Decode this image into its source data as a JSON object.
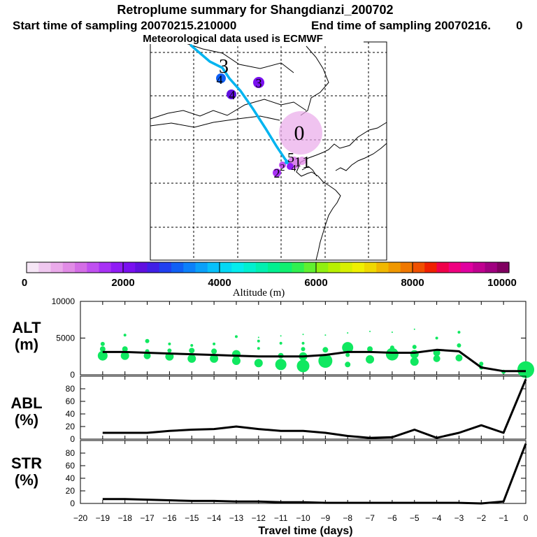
{
  "header": {
    "title": "Retroplume summary for Shangdianzi_200702",
    "start_label": "Start time of sampling 20070215.210000",
    "end_label": "End time of sampling 20070216.",
    "end_value": "0",
    "met_label": "Meteorological data used is ECMWF"
  },
  "colorbar": {
    "ticks": [
      "0",
      "2000",
      "4000",
      "6000",
      "8000",
      "10000"
    ],
    "label": "Altitude (m)",
    "range": [
      0,
      10000
    ],
    "colors": [
      "#f6e6f6",
      "#f0c8f0",
      "#eaaaea",
      "#e18ce6",
      "#d46ee6",
      "#c050f0",
      "#a832f5",
      "#901cf5",
      "#7a10f0",
      "#6010e0",
      "#4020e6",
      "#2040f0",
      "#1060f5",
      "#0c80fa",
      "#0aa0fa",
      "#08c0fa",
      "#04d8f5",
      "#04ecee",
      "#00f0d0",
      "#00f0b0",
      "#00f090",
      "#10f070",
      "#30f050",
      "#60f030",
      "#90f010",
      "#b8f000",
      "#d8f000",
      "#f0f000",
      "#f0d800",
      "#f0b800",
      "#f09800",
      "#f07800",
      "#f05000",
      "#f02000",
      "#f0004a",
      "#f00080",
      "#e000a0",
      "#c00090",
      "#a00080",
      "#800060"
    ]
  },
  "map": {
    "cluster_labels": [
      "3",
      "4",
      "3",
      "4",
      "0",
      "2",
      "1",
      "5",
      "1",
      "4",
      "2"
    ]
  },
  "chart_data": [
    {
      "type": "scatter",
      "panel": "ALT",
      "ylabel": "ALT\n(m)",
      "ylabel_line1": "ALT",
      "ylabel_line2": "(m)",
      "ylim": [
        0,
        10000
      ],
      "yticks": [
        "0",
        "5000",
        "10000"
      ],
      "series": [
        {
          "name": "mean altitude",
          "x": [
            -19,
            -18,
            -17,
            -16,
            -15,
            -14,
            -13,
            -12,
            -11,
            -10,
            -9,
            -8,
            -7,
            -6,
            -5,
            -4,
            -3,
            -2,
            -1,
            0
          ],
          "values": [
            3100,
            3100,
            3000,
            2900,
            2800,
            2700,
            2600,
            2500,
            2500,
            2500,
            2700,
            3100,
            3100,
            3000,
            3000,
            3400,
            3200,
            1000,
            500,
            500
          ]
        }
      ],
      "points": [
        {
          "x": -19,
          "y": 2600,
          "size": 7
        },
        {
          "x": -19,
          "y": 3500,
          "size": 4
        },
        {
          "x": -19,
          "y": 4200,
          "size": 3
        },
        {
          "x": -18,
          "y": 2600,
          "size": 6
        },
        {
          "x": -18,
          "y": 3500,
          "size": 4
        },
        {
          "x": -18,
          "y": 5400,
          "size": 2
        },
        {
          "x": -17,
          "y": 2600,
          "size": 5
        },
        {
          "x": -17,
          "y": 3200,
          "size": 3
        },
        {
          "x": -17,
          "y": 4600,
          "size": 3
        },
        {
          "x": -16,
          "y": 2500,
          "size": 6
        },
        {
          "x": -16,
          "y": 3300,
          "size": 3
        },
        {
          "x": -16,
          "y": 4200,
          "size": 2
        },
        {
          "x": -15,
          "y": 2200,
          "size": 6
        },
        {
          "x": -15,
          "y": 3300,
          "size": 4
        },
        {
          "x": -15,
          "y": 4000,
          "size": 2
        },
        {
          "x": -14,
          "y": 2200,
          "size": 6
        },
        {
          "x": -14,
          "y": 3200,
          "size": 4
        },
        {
          "x": -14,
          "y": 4200,
          "size": 2
        },
        {
          "x": -13,
          "y": 1900,
          "size": 6
        },
        {
          "x": -13,
          "y": 2800,
          "size": 6
        },
        {
          "x": -13,
          "y": 5200,
          "size": 2
        },
        {
          "x": -12,
          "y": 1600,
          "size": 6
        },
        {
          "x": -12,
          "y": 3600,
          "size": 2
        },
        {
          "x": -12,
          "y": 4600,
          "size": 2
        },
        {
          "x": -12,
          "y": 5100,
          "size": 1
        },
        {
          "x": -11,
          "y": 1400,
          "size": 8
        },
        {
          "x": -11,
          "y": 2600,
          "size": 4
        },
        {
          "x": -11,
          "y": 4300,
          "size": 2
        },
        {
          "x": -11,
          "y": 5300,
          "size": 1
        },
        {
          "x": -10,
          "y": 1200,
          "size": 9
        },
        {
          "x": -10,
          "y": 2500,
          "size": 6
        },
        {
          "x": -10,
          "y": 3500,
          "size": 3
        },
        {
          "x": -10,
          "y": 4300,
          "size": 2
        },
        {
          "x": -10,
          "y": 5500,
          "size": 1
        },
        {
          "x": -9,
          "y": 1900,
          "size": 10
        },
        {
          "x": -9,
          "y": 3400,
          "size": 4
        },
        {
          "x": -9,
          "y": 5400,
          "size": 1
        },
        {
          "x": -8,
          "y": 1400,
          "size": 4
        },
        {
          "x": -8,
          "y": 2700,
          "size": 3
        },
        {
          "x": -8,
          "y": 3700,
          "size": 8
        },
        {
          "x": -8,
          "y": 5700,
          "size": 1
        },
        {
          "x": -7,
          "y": 2100,
          "size": 6
        },
        {
          "x": -7,
          "y": 3500,
          "size": 4
        },
        {
          "x": -7,
          "y": 5900,
          "size": 1
        },
        {
          "x": -6,
          "y": 2800,
          "size": 9
        },
        {
          "x": -6,
          "y": 3700,
          "size": 3
        },
        {
          "x": -6,
          "y": 5800,
          "size": 1
        },
        {
          "x": -5,
          "y": 1800,
          "size": 6
        },
        {
          "x": -5,
          "y": 2800,
          "size": 6
        },
        {
          "x": -5,
          "y": 3800,
          "size": 3
        },
        {
          "x": -5,
          "y": 6200,
          "size": 1
        },
        {
          "x": -4,
          "y": 2200,
          "size": 5
        },
        {
          "x": -4,
          "y": 3000,
          "size": 5
        },
        {
          "x": -4,
          "y": 5000,
          "size": 2
        },
        {
          "x": -3,
          "y": 2300,
          "size": 5
        },
        {
          "x": -3,
          "y": 4000,
          "size": 3
        },
        {
          "x": -3,
          "y": 5800,
          "size": 2
        },
        {
          "x": -2,
          "y": 1500,
          "size": 3
        },
        {
          "x": -2,
          "y": 1000,
          "size": 3
        },
        {
          "x": -1,
          "y": 400,
          "size": 3
        },
        {
          "x": 0,
          "y": 700,
          "size": 12
        }
      ]
    },
    {
      "type": "line",
      "panel": "ABL",
      "ylabel": "ABL\n(%)",
      "ylabel_line1": "ABL",
      "ylabel_line2": "(%)",
      "ylim": [
        0,
        100
      ],
      "yticks": [
        "0",
        "20",
        "40",
        "60",
        "80"
      ],
      "series": [
        {
          "name": "ABL fraction",
          "x": [
            -19,
            -18,
            -17,
            -16,
            -15,
            -14,
            -13,
            -12,
            -11,
            -10,
            -9,
            -8,
            -7,
            -6,
            -5,
            -4,
            -3,
            -2,
            -1,
            0
          ],
          "values": [
            10,
            10,
            10,
            13,
            15,
            16,
            20,
            16,
            13,
            13,
            10,
            5,
            2,
            3,
            15,
            2,
            10,
            22,
            10,
            95
          ]
        }
      ]
    },
    {
      "type": "line",
      "panel": "STR",
      "ylabel": "STR\n(%)",
      "ylabel_line1": "STR",
      "ylabel_line2": "(%)",
      "ylim": [
        0,
        100
      ],
      "yticks": [
        "0",
        "20",
        "40",
        "60",
        "80"
      ],
      "xlabel": "Travel time (days)",
      "xticks": [
        "−20",
        "−19",
        "−18",
        "−17",
        "−16",
        "−15",
        "−14",
        "−13",
        "−12",
        "−11",
        "−10",
        "−9",
        "−8",
        "−7",
        "−6",
        "−5",
        "−4",
        "−3",
        "−2",
        "−1",
        "0"
      ],
      "series": [
        {
          "name": "STR fraction",
          "x": [
            -19,
            -18,
            -17,
            -16,
            -15,
            -14,
            -13,
            -12,
            -11,
            -10,
            -9,
            -8,
            -7,
            -6,
            -5,
            -4,
            -3,
            -2,
            -1,
            0
          ],
          "values": [
            7,
            7,
            6,
            5,
            4,
            4,
            3,
            3,
            2,
            2,
            1,
            1,
            1,
            1,
            1,
            1,
            1,
            0,
            3,
            95
          ]
        }
      ]
    }
  ]
}
